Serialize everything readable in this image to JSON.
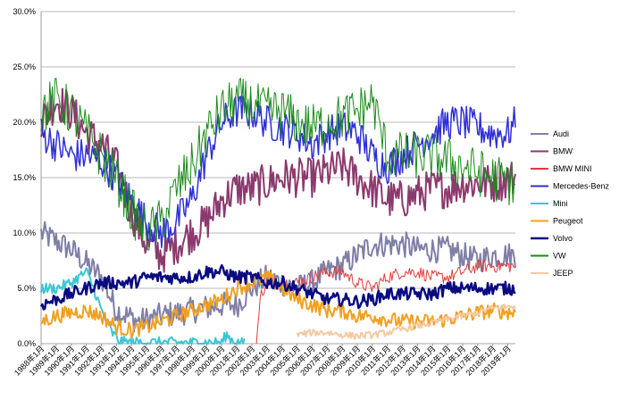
{
  "chart_data": {
    "type": "line",
    "title": "",
    "xlabel": "",
    "ylabel": "",
    "ylim": [
      0,
      30
    ],
    "y_ticks": [
      "0.0%",
      "5.0%",
      "10.0%",
      "15.0%",
      "20.0%",
      "25.0%",
      "30.0%"
    ],
    "x_range_years": [
      1988,
      2019.5
    ],
    "x_tick_labels": [
      "1988年1月",
      "1989年1月",
      "1990年1月",
      "1991年1月",
      "1992年1月",
      "1993年1月",
      "1994年1月",
      "1995年1月",
      "1996年1月",
      "1997年1月",
      "1998年1月",
      "1999年1月",
      "2000年1月",
      "2001年1月",
      "2002年1月",
      "2003年1月",
      "2004年1月",
      "2005年1月",
      "2006年1月",
      "2007年1月",
      "2008年1月",
      "2009年1月",
      "2010年1月",
      "2011年1月",
      "2012年1月",
      "2013年1月",
      "2014年1月",
      "2015年1月",
      "2016年1月",
      "2017年1月",
      "2018年1月",
      "2019年1月"
    ],
    "grid": "horizontal",
    "legend_position": "right",
    "series": [
      {
        "name": "Audi",
        "color": "#7f7fa6",
        "width": 2,
        "start": 1988,
        "end": 2019.5,
        "noise": 1.2,
        "anchors": [
          [
            1988,
            10
          ],
          [
            1990,
            8.5
          ],
          [
            1992,
            6
          ],
          [
            1993,
            3
          ],
          [
            1994.5,
            2
          ],
          [
            1996,
            2.5
          ],
          [
            1998,
            3
          ],
          [
            2000,
            3.5
          ],
          [
            2001,
            3.5
          ],
          [
            2002,
            5
          ],
          [
            2003,
            6
          ],
          [
            2004,
            5.5
          ],
          [
            2005,
            5
          ],
          [
            2006,
            5.5
          ],
          [
            2007,
            6.5
          ],
          [
            2008,
            7
          ],
          [
            2009,
            8
          ],
          [
            2010,
            9
          ],
          [
            2011,
            9
          ],
          [
            2012,
            9
          ],
          [
            2013,
            8.5
          ],
          [
            2014,
            8.5
          ],
          [
            2015,
            8.5
          ],
          [
            2016,
            8
          ],
          [
            2017,
            7.5
          ],
          [
            2018,
            8
          ],
          [
            2019.5,
            8
          ]
        ]
      },
      {
        "name": "BMW",
        "color": "#8b3a6e",
        "width": 2,
        "start": 1988,
        "end": 2019.5,
        "noise": 1.8,
        "anchors": [
          [
            1988,
            20
          ],
          [
            1989,
            22
          ],
          [
            1990,
            21
          ],
          [
            1991,
            19
          ],
          [
            1992,
            18
          ],
          [
            1993,
            16
          ],
          [
            1994,
            12
          ],
          [
            1995,
            9
          ],
          [
            1996,
            8
          ],
          [
            1997,
            9
          ],
          [
            1998,
            10
          ],
          [
            1999,
            11
          ],
          [
            2000,
            13
          ],
          [
            2001,
            14
          ],
          [
            2002,
            14
          ],
          [
            2003,
            14.5
          ],
          [
            2004,
            15
          ],
          [
            2005,
            15
          ],
          [
            2006,
            15
          ],
          [
            2007,
            15.5
          ],
          [
            2008,
            16
          ],
          [
            2009,
            15
          ],
          [
            2010,
            14
          ],
          [
            2011,
            13
          ],
          [
            2012,
            13
          ],
          [
            2013,
            13.5
          ],
          [
            2014,
            14
          ],
          [
            2015,
            14
          ],
          [
            2016,
            14.5
          ],
          [
            2017,
            14.5
          ],
          [
            2018,
            14.5
          ],
          [
            2019.5,
            15
          ]
        ]
      },
      {
        "name": "BMW MINI",
        "color": "#e03c3c",
        "width": 1,
        "start": 2002.3,
        "end": 2019.5,
        "noise": 0.6,
        "anchors": [
          [
            2002.3,
            0.2
          ],
          [
            2002.6,
            4.5
          ],
          [
            2003,
            5.5
          ],
          [
            2004,
            5.5
          ],
          [
            2005,
            5.5
          ],
          [
            2006,
            6
          ],
          [
            2007,
            6.5
          ],
          [
            2008,
            6.5
          ],
          [
            2009,
            5.5
          ],
          [
            2010,
            5
          ],
          [
            2011,
            6
          ],
          [
            2012,
            6.5
          ],
          [
            2013,
            6.5
          ],
          [
            2014,
            6
          ],
          [
            2015,
            6
          ],
          [
            2016,
            6.5
          ],
          [
            2017,
            7
          ],
          [
            2018,
            7
          ],
          [
            2019.5,
            7
          ]
        ]
      },
      {
        "name": "Mercedes-Benz",
        "color": "#2f2fd6",
        "width": 1.5,
        "start": 1988,
        "end": 2019.5,
        "noise": 1.6,
        "anchors": [
          [
            1988,
            19
          ],
          [
            1989,
            18
          ],
          [
            1990,
            17
          ],
          [
            1991,
            17
          ],
          [
            1992,
            16.5
          ],
          [
            1993,
            15
          ],
          [
            1994,
            13
          ],
          [
            1995,
            11
          ],
          [
            1996,
            10
          ],
          [
            1997,
            11
          ],
          [
            1998,
            13
          ],
          [
            1999,
            17
          ],
          [
            2000,
            20
          ],
          [
            2001,
            21
          ],
          [
            2002,
            21
          ],
          [
            2003,
            20
          ],
          [
            2004,
            19.5
          ],
          [
            2005,
            19
          ],
          [
            2006,
            18
          ],
          [
            2007,
            19
          ],
          [
            2008,
            19.5
          ],
          [
            2009,
            19
          ],
          [
            2010,
            17
          ],
          [
            2011,
            16
          ],
          [
            2012,
            17
          ],
          [
            2013,
            18
          ],
          [
            2014,
            19
          ],
          [
            2015,
            20
          ],
          [
            2016,
            20
          ],
          [
            2017,
            19.5
          ],
          [
            2018,
            19
          ],
          [
            2019,
            19
          ],
          [
            2019.5,
            20
          ]
        ]
      },
      {
        "name": "Mini",
        "color": "#3cc6d4",
        "width": 2,
        "start": 1988,
        "end": 2001.5,
        "noise": 0.5,
        "anchors": [
          [
            1988,
            5
          ],
          [
            1989,
            5
          ],
          [
            1990,
            5.5
          ],
          [
            1991,
            6.5
          ],
          [
            1991.5,
            5
          ],
          [
            1992,
            3
          ],
          [
            1992.7,
            1
          ],
          [
            1993.2,
            0.2
          ],
          [
            1994,
            0.1
          ],
          [
            2000,
            0.1
          ],
          [
            2000.3,
            0.8
          ],
          [
            2000.8,
            0.2
          ],
          [
            2001.5,
            0
          ]
        ]
      },
      {
        "name": "Peugeot",
        "color": "#f0a020",
        "width": 2,
        "start": 1988,
        "end": 2019.5,
        "noise": 0.7,
        "anchors": [
          [
            1988,
            2
          ],
          [
            1989,
            2.5
          ],
          [
            1990,
            2.8
          ],
          [
            1991,
            3
          ],
          [
            1992,
            2.5
          ],
          [
            1993,
            1.5
          ],
          [
            1994,
            1.2
          ],
          [
            1995,
            1.5
          ],
          [
            1996,
            2
          ],
          [
            1997,
            2.5
          ],
          [
            1998,
            3
          ],
          [
            1999,
            3.5
          ],
          [
            2000,
            4
          ],
          [
            2001,
            5
          ],
          [
            2002,
            5.5
          ],
          [
            2003,
            6
          ],
          [
            2004,
            5
          ],
          [
            2005,
            4
          ],
          [
            2006,
            3.5
          ],
          [
            2007,
            3
          ],
          [
            2008,
            3
          ],
          [
            2009,
            2.5
          ],
          [
            2010,
            2.5
          ],
          [
            2011,
            2.2
          ],
          [
            2012,
            2
          ],
          [
            2013,
            2
          ],
          [
            2014,
            2
          ],
          [
            2015,
            2.2
          ],
          [
            2016,
            2.5
          ],
          [
            2017,
            2.8
          ],
          [
            2018,
            3
          ],
          [
            2019.5,
            2.8
          ]
        ]
      },
      {
        "name": "Volvo",
        "color": "#0a0a82",
        "width": 2.5,
        "start": 1988,
        "end": 2019.5,
        "noise": 0.6,
        "anchors": [
          [
            1988,
            3.5
          ],
          [
            1989,
            4
          ],
          [
            1990,
            4.5
          ],
          [
            1991,
            5
          ],
          [
            1992,
            5.5
          ],
          [
            1993,
            5.5
          ],
          [
            1994,
            5.5
          ],
          [
            1995,
            6
          ],
          [
            1996,
            6
          ],
          [
            1997,
            6
          ],
          [
            1998,
            6
          ],
          [
            1999,
            6.5
          ],
          [
            2000,
            6.5
          ],
          [
            2001,
            6
          ],
          [
            2002,
            6
          ],
          [
            2003,
            5.5
          ],
          [
            2004,
            5.5
          ],
          [
            2005,
            5
          ],
          [
            2006,
            4.5
          ],
          [
            2007,
            4
          ],
          [
            2008,
            4
          ],
          [
            2009,
            3.8
          ],
          [
            2010,
            4
          ],
          [
            2011,
            4.5
          ],
          [
            2012,
            4.5
          ],
          [
            2013,
            4.5
          ],
          [
            2014,
            4.5
          ],
          [
            2015,
            5
          ],
          [
            2016,
            5
          ],
          [
            2017,
            5
          ],
          [
            2018,
            5
          ],
          [
            2019.5,
            5
          ]
        ]
      },
      {
        "name": "VW",
        "color": "#1a8a1a",
        "width": 1,
        "start": 1988,
        "end": 2019.5,
        "noise": 2.2,
        "anchors": [
          [
            1988,
            21
          ],
          [
            1989,
            22
          ],
          [
            1990,
            21
          ],
          [
            1991,
            19
          ],
          [
            1992,
            17
          ],
          [
            1993,
            15
          ],
          [
            1994,
            12
          ],
          [
            1995,
            10
          ],
          [
            1996,
            11
          ],
          [
            1997,
            14
          ],
          [
            1998,
            16
          ],
          [
            1999,
            19
          ],
          [
            2000,
            21
          ],
          [
            2001,
            22
          ],
          [
            2002,
            21.5
          ],
          [
            2003,
            21
          ],
          [
            2004,
            21
          ],
          [
            2005,
            20
          ],
          [
            2006,
            19.5
          ],
          [
            2007,
            20
          ],
          [
            2008,
            20.5
          ],
          [
            2009,
            21
          ],
          [
            2010,
            22
          ],
          [
            2011,
            17
          ],
          [
            2012,
            17
          ],
          [
            2013,
            17
          ],
          [
            2014,
            17
          ],
          [
            2015,
            16.5
          ],
          [
            2016,
            16
          ],
          [
            2017,
            15.5
          ],
          [
            2018,
            15
          ],
          [
            2019.5,
            14.5
          ]
        ]
      },
      {
        "name": "JEEP",
        "color": "#f5c9a0",
        "width": 2,
        "start": 2005,
        "end": 2019.5,
        "noise": 0.3,
        "anchors": [
          [
            2005,
            0.8
          ],
          [
            2006,
            1
          ],
          [
            2007,
            1
          ],
          [
            2008,
            0.8
          ],
          [
            2009,
            0.7
          ],
          [
            2010,
            0.8
          ],
          [
            2011,
            1
          ],
          [
            2012,
            1.3
          ],
          [
            2013,
            1.6
          ],
          [
            2014,
            1.9
          ],
          [
            2015,
            2.2
          ],
          [
            2016,
            2.5
          ],
          [
            2017,
            2.8
          ],
          [
            2018,
            3.2
          ],
          [
            2019.5,
            3.4
          ]
        ]
      }
    ]
  }
}
